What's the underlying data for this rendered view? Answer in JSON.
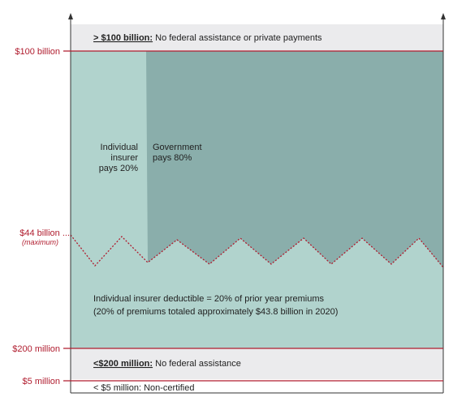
{
  "axis_labels": {
    "top": "$100 billion",
    "cap": "$44 billion ...",
    "cap_note": "(maximum)",
    "deductible_floor": "$200 million",
    "certification": "$5 million"
  },
  "bands": {
    "top": {
      "key": "> $100 billion:",
      "text": " No federal assistance or private payments"
    },
    "middle": {
      "key": "<$200 million:",
      "text": " No federal assistance"
    },
    "bottom": {
      "key": "< $5 million:",
      "text": " Non-certified"
    }
  },
  "regions": {
    "insurer_share": [
      "Individual",
      "insurer",
      "pays 20%"
    ],
    "government_share": [
      "Government",
      "pays 80%"
    ],
    "deductible": [
      "Individual insurer deductible = 20% of prior year premiums",
      "(20% of premiums totaled approximately $43.8 billion in 2020)"
    ]
  }
}
